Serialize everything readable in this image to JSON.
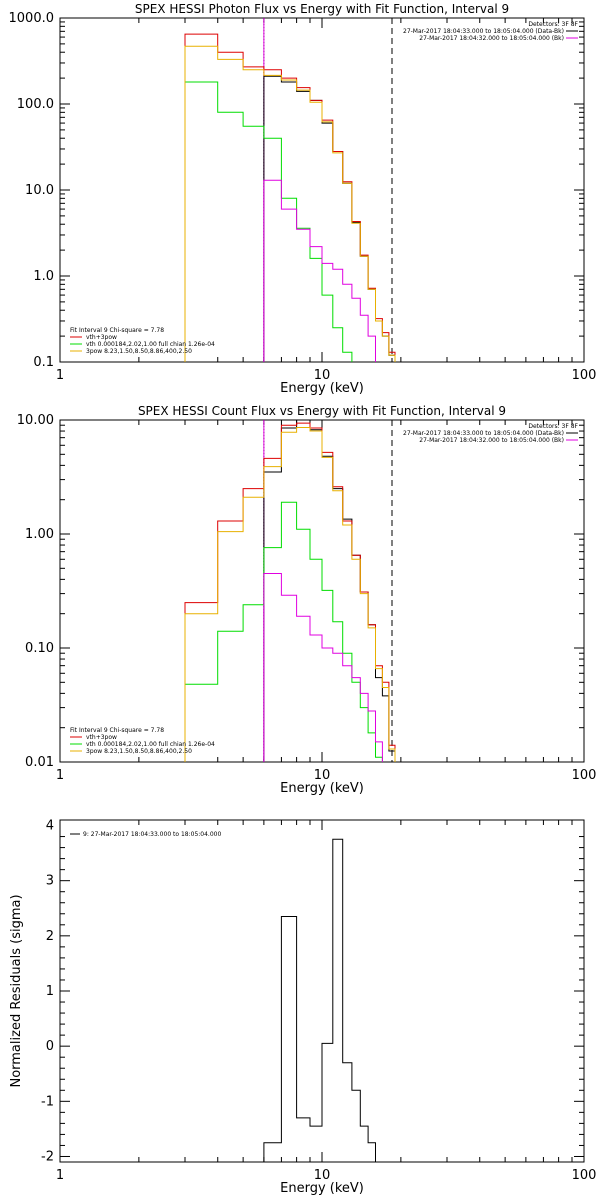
{
  "chart_data": [
    {
      "type": "line",
      "title": "SPEX HESSI Photon Flux vs Energy with Fit Function, Interval 9",
      "xlabel": "Energy (keV)",
      "ylabel": "",
      "xscale": "log",
      "yscale": "log",
      "xlim": [
        1,
        100
      ],
      "ylim": [
        0.1,
        1000
      ],
      "xticks": [
        "1",
        "10",
        "100"
      ],
      "yticks": [
        "0.1",
        "1.0",
        "10.0",
        "100.0",
        "1000.0"
      ],
      "bin_edges": [
        3.0,
        4.0,
        5.0,
        6.0,
        7.0,
        8.0,
        9.0,
        10.0,
        11.0,
        12.0,
        13.0,
        14.0,
        15.0,
        16.0,
        17.0,
        18.0,
        19.0,
        20.0
      ],
      "vlines": [
        {
          "x": 6.0,
          "style": "dotted",
          "color": "#000000"
        },
        {
          "x": 18.5,
          "style": "dashed",
          "color": "#000000"
        },
        {
          "x": 6.0,
          "style": "solid",
          "color": "#e000e0"
        }
      ],
      "legend_top": {
        "heading": "Detectors: 3F 8F",
        "entries": [
          {
            "label": "27-Mar-2017 18:04:33.000 to 18:05:04.000 (Data-Bk)",
            "color": "#000000"
          },
          {
            "label": "27-Mar-2017 18:04:32.000 to 18:05:04.000 (Bk)",
            "color": "#e000e0"
          }
        ]
      },
      "legend_bottom": {
        "heading": "Fit Interval 9   Chi-square = 7.78",
        "entries": [
          {
            "label": "vth+3pow",
            "color": "#dd0000"
          },
          {
            "label": "vth 0.000184,2.02,1.00   full chian 1.26e-04",
            "color": "#00dd00"
          },
          {
            "label": "3pow 8.23,1.50,8.50,8.86,400,2.50",
            "color": "#e8b000"
          }
        ]
      },
      "series": [
        {
          "color": "#000000",
          "values": [
            null,
            null,
            null,
            210,
            180,
            140,
            110,
            60,
            28,
            12,
            4.2,
            1.7,
            0.7,
            0.3,
            0.2,
            0.12,
            null
          ]
        },
        {
          "color": "#dd0000",
          "values": [
            650,
            400,
            270,
            250,
            200,
            155,
            110,
            65,
            28,
            12.5,
            4.3,
            1.75,
            0.72,
            0.32,
            0.22,
            0.13,
            null
          ]
        },
        {
          "color": "#00dd00",
          "values": [
            180,
            80,
            55,
            40,
            8,
            3.6,
            1.6,
            0.6,
            0.25,
            0.13,
            null,
            null,
            null,
            null,
            null,
            null,
            null
          ]
        },
        {
          "color": "#e8b000",
          "values": [
            470,
            330,
            250,
            215,
            190,
            145,
            105,
            62,
            27,
            12,
            4.1,
            1.7,
            0.7,
            0.3,
            0.2,
            0.12,
            null
          ]
        },
        {
          "color": "#e000e0",
          "values": [
            null,
            null,
            null,
            13,
            6,
            3.5,
            2.2,
            1.4,
            1.2,
            0.8,
            0.55,
            0.35,
            0.2,
            null,
            null,
            null,
            null
          ]
        }
      ]
    },
    {
      "type": "line",
      "title": "SPEX HESSI Count Flux vs Energy with Fit Function, Interval 9",
      "xlabel": "Energy (keV)",
      "ylabel": "",
      "xscale": "log",
      "yscale": "log",
      "xlim": [
        1,
        100
      ],
      "ylim": [
        0.01,
        10
      ],
      "xticks": [
        "1",
        "10",
        "100"
      ],
      "yticks": [
        "0.01",
        "0.10",
        "1.00",
        "10.00"
      ],
      "bin_edges": [
        3.0,
        4.0,
        5.0,
        6.0,
        7.0,
        8.0,
        9.0,
        10.0,
        11.0,
        12.0,
        13.0,
        14.0,
        15.0,
        16.0,
        17.0,
        18.0,
        19.0,
        20.0
      ],
      "vlines": [
        {
          "x": 6.0,
          "style": "dotted",
          "color": "#000000"
        },
        {
          "x": 18.5,
          "style": "dashed",
          "color": "#000000"
        },
        {
          "x": 6.0,
          "style": "solid",
          "color": "#e000e0"
        }
      ],
      "legend_top": {
        "heading": "Detectors: 3F 8F",
        "entries": [
          {
            "label": "27-Mar-2017 18:04:33.000 to 18:05:04.000 (Data-Bk)",
            "color": "#000000"
          },
          {
            "label": "27-Mar-2017 18:04:32.000 to 18:05:04.000 (Bk)",
            "color": "#e000e0"
          }
        ]
      },
      "legend_bottom": {
        "heading": "Fit Interval 9   Chi-square = 7.78",
        "entries": [
          {
            "label": "vth+3pow",
            "color": "#dd0000"
          },
          {
            "label": "vth 0.000184,2.02,1.00   full chian 1.26e-04",
            "color": "#00dd00"
          },
          {
            "label": "3pow 8.23,1.50,8.50,8.86,400,2.50",
            "color": "#e8b000"
          }
        ]
      },
      "series": [
        {
          "color": "#000000",
          "values": [
            null,
            null,
            null,
            3.5,
            8.5,
            10.0,
            8.2,
            4.8,
            2.5,
            1.35,
            0.65,
            0.31,
            0.16,
            0.055,
            0.038,
            0.0125,
            null
          ]
        },
        {
          "color": "#dd0000",
          "values": [
            0.25,
            1.3,
            2.5,
            4.6,
            9.0,
            9.4,
            8.5,
            5.2,
            2.6,
            1.3,
            0.65,
            0.31,
            0.16,
            0.07,
            0.05,
            0.014,
            null
          ]
        },
        {
          "color": "#00dd00",
          "values": [
            0.048,
            0.14,
            0.24,
            0.76,
            1.9,
            1.1,
            0.6,
            0.32,
            0.17,
            0.09,
            0.05,
            0.03,
            0.018,
            0.011,
            null,
            null,
            null
          ]
        },
        {
          "color": "#e8b000",
          "values": [
            0.2,
            1.05,
            2.1,
            3.9,
            7.8,
            8.6,
            8.0,
            4.7,
            2.4,
            1.2,
            0.6,
            0.3,
            0.15,
            0.066,
            0.045,
            0.013,
            null
          ]
        },
        {
          "color": "#e000e0",
          "values": [
            null,
            null,
            null,
            0.45,
            0.29,
            0.19,
            0.13,
            0.1,
            0.09,
            0.07,
            0.055,
            0.04,
            0.028,
            0.015,
            null,
            null,
            null
          ]
        }
      ]
    },
    {
      "type": "line",
      "title": "",
      "xlabel": "Energy (keV)",
      "ylabel": "Normalized Residuals (sigma)",
      "xscale": "log",
      "yscale": "linear",
      "xlim": [
        1,
        100
      ],
      "ylim": [
        -2.1,
        4.1
      ],
      "xticks": [
        "1",
        "10",
        "100"
      ],
      "yticks": [
        "-2",
        "-1",
        "0",
        "1",
        "2",
        "3",
        "4"
      ],
      "bin_edges": [
        6.0,
        7.0,
        8.0,
        9.0,
        10.0,
        11.0,
        12.0,
        13.0,
        14.0,
        15.0,
        16.0,
        17.0,
        18.0
      ],
      "legend_top": {
        "heading": "",
        "entries": [
          {
            "label": "9: 27-Mar-2017 18:04:33.000 to 18:05:04.000",
            "color": "#000000"
          }
        ]
      },
      "series": [
        {
          "color": "#000000",
          "values": [
            -1.75,
            2.35,
            -1.3,
            -1.45,
            0.05,
            3.75,
            -0.3,
            -0.8,
            -1.45,
            -1.75,
            -2.1,
            -2.1
          ]
        }
      ]
    }
  ]
}
